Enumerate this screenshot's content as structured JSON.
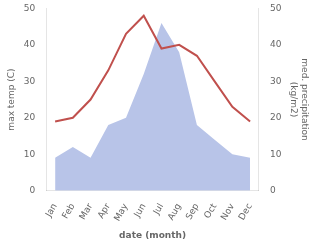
{
  "chart_data": {
    "type": "line",
    "categories": [
      "Jan",
      "Feb",
      "Mar",
      "Apr",
      "May",
      "Jun",
      "Jul",
      "Aug",
      "Sep",
      "Oct",
      "Nov",
      "Dec"
    ],
    "xlabel": "date (month)",
    "ylabel": "max temp (C)",
    "y2label": "med. precipitation\n(kg/m2)",
    "ylim": [
      0,
      50
    ],
    "yticks": [
      0,
      10,
      20,
      30,
      40,
      50
    ],
    "y2lim": [
      0,
      50
    ],
    "y2ticks": [
      0,
      10,
      20,
      30,
      40,
      50
    ],
    "grid": false,
    "series": [
      {
        "type": "area",
        "color": "#b8c4e8",
        "axis": "y2",
        "values": [
          9,
          12,
          9,
          18,
          20,
          32,
          46,
          38,
          18,
          14,
          10,
          9
        ]
      },
      {
        "type": "line",
        "color": "#c0504d",
        "values": [
          19,
          20,
          25,
          33,
          43,
          48,
          39,
          40,
          37,
          30,
          23,
          19
        ]
      }
    ]
  }
}
